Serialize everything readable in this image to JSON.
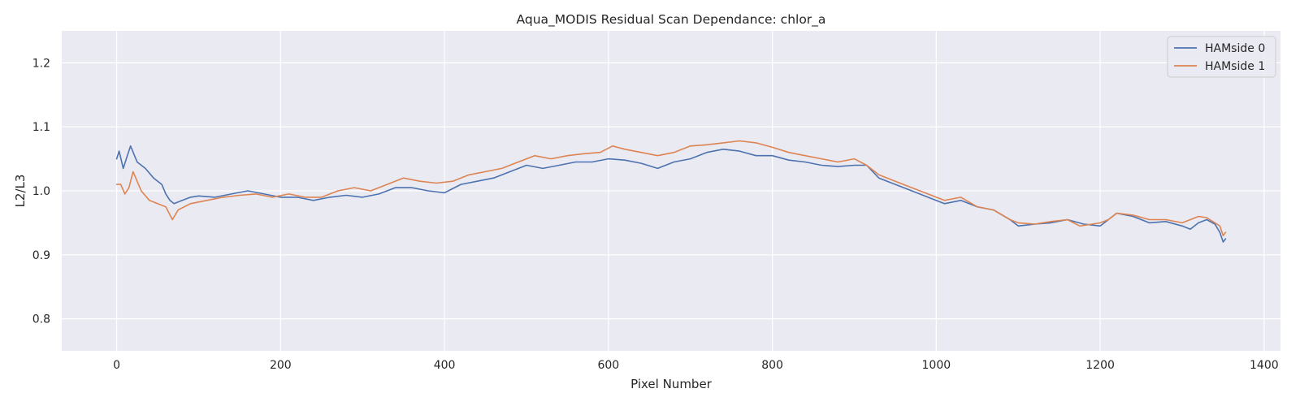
{
  "chart_data": {
    "type": "line",
    "title": "Aqua_MODIS Residual Scan Dependance: chlor_a",
    "xlabel": "Pixel Number",
    "ylabel": "L2/L3",
    "xlim": [
      -67,
      1420
    ],
    "ylim": [
      0.75,
      1.25
    ],
    "xticks": [
      0,
      200,
      400,
      600,
      800,
      1000,
      1200,
      1400
    ],
    "yticks": [
      0.8,
      0.9,
      1.0,
      1.1,
      1.2
    ],
    "xtick_labels": [
      "0",
      "200",
      "400",
      "600",
      "800",
      "1000",
      "1200",
      "1400"
    ],
    "ytick_labels": [
      "0.8",
      "0.9",
      "1.0",
      "1.1",
      "1.2"
    ],
    "grid": true,
    "legend_position": "top-right",
    "background": "#eaeaf2",
    "series": [
      {
        "name": "HAMside 0",
        "color": "#4c72b0",
        "x": [
          0,
          3,
          8,
          13,
          17,
          25,
          35,
          45,
          55,
          60,
          65,
          70,
          80,
          90,
          100,
          120,
          140,
          160,
          180,
          200,
          220,
          240,
          260,
          280,
          300,
          320,
          340,
          360,
          380,
          400,
          420,
          440,
          460,
          480,
          500,
          520,
          540,
          560,
          580,
          600,
          620,
          640,
          660,
          680,
          700,
          720,
          740,
          760,
          780,
          800,
          820,
          840,
          860,
          880,
          900,
          915,
          930,
          950,
          970,
          990,
          1010,
          1030,
          1050,
          1070,
          1090,
          1100,
          1120,
          1140,
          1160,
          1180,
          1200,
          1210,
          1220,
          1240,
          1260,
          1280,
          1300,
          1310,
          1320,
          1330,
          1340,
          1346,
          1350,
          1353
        ],
        "y": [
          1.05,
          1.062,
          1.035,
          1.055,
          1.07,
          1.045,
          1.035,
          1.02,
          1.01,
          0.995,
          0.985,
          0.98,
          0.985,
          0.99,
          0.992,
          0.99,
          0.995,
          1.0,
          0.995,
          0.99,
          0.99,
          0.985,
          0.99,
          0.993,
          0.99,
          0.995,
          1.005,
          1.005,
          1.0,
          0.997,
          1.01,
          1.015,
          1.02,
          1.03,
          1.04,
          1.035,
          1.04,
          1.045,
          1.045,
          1.05,
          1.048,
          1.043,
          1.035,
          1.045,
          1.05,
          1.06,
          1.065,
          1.062,
          1.055,
          1.055,
          1.048,
          1.045,
          1.04,
          1.038,
          1.04,
          1.04,
          1.02,
          1.01,
          1.0,
          0.99,
          0.98,
          0.985,
          0.975,
          0.97,
          0.955,
          0.945,
          0.948,
          0.95,
          0.955,
          0.948,
          0.945,
          0.955,
          0.965,
          0.96,
          0.95,
          0.952,
          0.945,
          0.94,
          0.95,
          0.955,
          0.948,
          0.935,
          0.92,
          0.925
        ]
      },
      {
        "name": "HAMside 1",
        "color": "#dd8452",
        "x": [
          0,
          5,
          10,
          15,
          20,
          30,
          40,
          50,
          60,
          68,
          75,
          90,
          110,
          130,
          150,
          170,
          190,
          210,
          230,
          250,
          270,
          290,
          310,
          330,
          350,
          370,
          390,
          410,
          430,
          450,
          470,
          490,
          510,
          530,
          550,
          570,
          590,
          605,
          620,
          640,
          660,
          680,
          700,
          720,
          740,
          760,
          780,
          800,
          820,
          840,
          860,
          880,
          900,
          915,
          930,
          950,
          970,
          990,
          1010,
          1030,
          1050,
          1070,
          1090,
          1100,
          1120,
          1140,
          1160,
          1175,
          1190,
          1200,
          1210,
          1220,
          1240,
          1260,
          1280,
          1300,
          1310,
          1320,
          1330,
          1340,
          1346,
          1350,
          1353
        ],
        "y": [
          1.01,
          1.01,
          0.995,
          1.005,
          1.03,
          1.0,
          0.985,
          0.98,
          0.975,
          0.955,
          0.97,
          0.98,
          0.985,
          0.99,
          0.993,
          0.995,
          0.99,
          0.995,
          0.99,
          0.99,
          1.0,
          1.005,
          1.0,
          1.01,
          1.02,
          1.015,
          1.012,
          1.015,
          1.025,
          1.03,
          1.035,
          1.045,
          1.055,
          1.05,
          1.055,
          1.058,
          1.06,
          1.07,
          1.065,
          1.06,
          1.055,
          1.06,
          1.07,
          1.072,
          1.075,
          1.078,
          1.075,
          1.068,
          1.06,
          1.055,
          1.05,
          1.045,
          1.05,
          1.04,
          1.025,
          1.015,
          1.005,
          0.995,
          0.985,
          0.99,
          0.975,
          0.97,
          0.955,
          0.95,
          0.948,
          0.952,
          0.955,
          0.945,
          0.948,
          0.95,
          0.955,
          0.965,
          0.962,
          0.955,
          0.955,
          0.95,
          0.955,
          0.96,
          0.958,
          0.95,
          0.945,
          0.93,
          0.935
        ]
      }
    ]
  }
}
